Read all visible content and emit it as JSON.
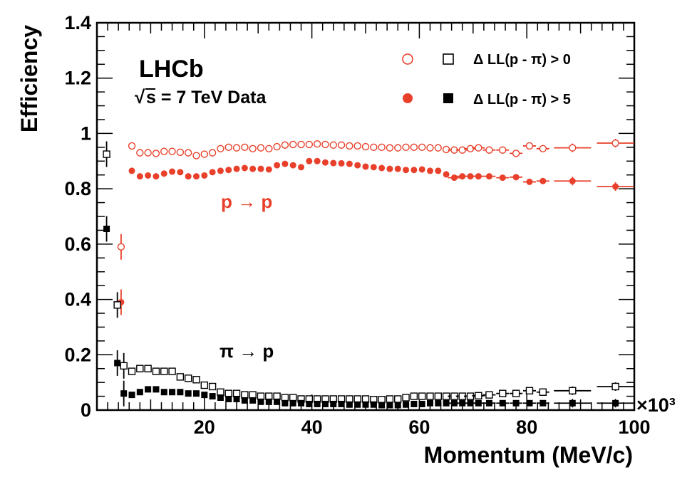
{
  "chart_data": {
    "type": "scatter",
    "xlabel": "Momentum (MeV/c)",
    "ylabel": "Efficiency",
    "x_multiplier": "×10³",
    "xlim": [
      0,
      100000
    ],
    "ylim": [
      0,
      1.4
    ],
    "x_ticks": [
      {
        "value": 20000,
        "label": "20"
      },
      {
        "value": 40000,
        "label": "40"
      },
      {
        "value": 60000,
        "label": "60"
      },
      {
        "value": 80000,
        "label": "80"
      },
      {
        "value": 100000,
        "label": "100"
      }
    ],
    "y_ticks": [
      {
        "value": 0,
        "label": "0"
      },
      {
        "value": 0.2,
        "label": "0.2"
      },
      {
        "value": 0.4,
        "label": "0.4"
      },
      {
        "value": 0.6,
        "label": "0.6"
      },
      {
        "value": 0.8,
        "label": "0.8"
      },
      {
        "value": 1.0,
        "label": "1"
      },
      {
        "value": 1.2,
        "label": "1.2"
      },
      {
        "value": 1.4,
        "label": "1.4"
      }
    ],
    "grid": false,
    "legend_position": "top-right",
    "legend": [
      {
        "label": "Δ LL(p - π) > 0",
        "markers": [
          "open-circle-red",
          "open-square-black"
        ]
      },
      {
        "label": "Δ LL(p - π) > 5",
        "markers": [
          "filled-circle-red",
          "filled-square-black"
        ]
      }
    ],
    "annotations": {
      "experiment": "LHCb",
      "energy_prefix": "√",
      "energy": "s = 7 TeV Data",
      "proton_label": "p → p",
      "pion_label": "π → p"
    },
    "colors": {
      "proton": "#e8402a",
      "pion": "#000000"
    },
    "series": [
      {
        "marker": "open-circle",
        "color": "#e8402a",
        "points": [
          [
            4500,
            0.59
          ],
          [
            6500,
            0.955
          ],
          [
            8000,
            0.93
          ],
          [
            9500,
            0.93
          ],
          [
            11000,
            0.928
          ],
          [
            12500,
            0.935
          ],
          [
            14000,
            0.935
          ],
          [
            15500,
            0.932
          ],
          [
            17000,
            0.93
          ],
          [
            18500,
            0.92
          ],
          [
            20000,
            0.925
          ],
          [
            21500,
            0.93
          ],
          [
            23000,
            0.945
          ],
          [
            24500,
            0.95
          ],
          [
            26000,
            0.948
          ],
          [
            27500,
            0.95
          ],
          [
            29000,
            0.945
          ],
          [
            30500,
            0.948
          ],
          [
            32000,
            0.945
          ],
          [
            33500,
            0.952
          ],
          [
            35000,
            0.958
          ],
          [
            36500,
            0.96
          ],
          [
            38000,
            0.96
          ],
          [
            39500,
            0.96
          ],
          [
            41000,
            0.962
          ],
          [
            42500,
            0.96
          ],
          [
            44000,
            0.958
          ],
          [
            45500,
            0.958
          ],
          [
            47000,
            0.955
          ],
          [
            48500,
            0.955
          ],
          [
            50000,
            0.952
          ],
          [
            51500,
            0.95
          ],
          [
            53000,
            0.95
          ],
          [
            54500,
            0.948
          ],
          [
            56000,
            0.948
          ],
          [
            57500,
            0.95
          ],
          [
            59000,
            0.95
          ],
          [
            60500,
            0.95
          ],
          [
            62000,
            0.948
          ],
          [
            63500,
            0.948
          ],
          [
            65000,
            0.942
          ],
          [
            66500,
            0.94
          ],
          [
            68000,
            0.94
          ],
          [
            69500,
            0.945
          ],
          [
            71000,
            0.948
          ],
          [
            73000,
            0.94
          ],
          [
            75500,
            0.94
          ],
          [
            78000,
            0.928
          ],
          [
            80500,
            0.955
          ],
          [
            83000,
            0.945
          ],
          [
            88500,
            0.948
          ],
          [
            96500,
            0.965
          ]
        ]
      },
      {
        "marker": "filled-circle",
        "color": "#e8402a",
        "points": [
          [
            4500,
            0.39
          ],
          [
            6500,
            0.865
          ],
          [
            8000,
            0.845
          ],
          [
            9500,
            0.848
          ],
          [
            11000,
            0.845
          ],
          [
            12500,
            0.855
          ],
          [
            14000,
            0.862
          ],
          [
            15500,
            0.86
          ],
          [
            17000,
            0.845
          ],
          [
            18500,
            0.845
          ],
          [
            20000,
            0.848
          ],
          [
            21500,
            0.86
          ],
          [
            23000,
            0.865
          ],
          [
            24500,
            0.868
          ],
          [
            26000,
            0.872
          ],
          [
            27500,
            0.875
          ],
          [
            29000,
            0.872
          ],
          [
            30500,
            0.872
          ],
          [
            32000,
            0.87
          ],
          [
            33500,
            0.885
          ],
          [
            35000,
            0.89
          ],
          [
            36500,
            0.885
          ],
          [
            38000,
            0.878
          ],
          [
            39500,
            0.9
          ],
          [
            41000,
            0.9
          ],
          [
            42500,
            0.895
          ],
          [
            44000,
            0.893
          ],
          [
            45500,
            0.892
          ],
          [
            47000,
            0.89
          ],
          [
            48500,
            0.885
          ],
          [
            50000,
            0.88
          ],
          [
            51500,
            0.878
          ],
          [
            53000,
            0.875
          ],
          [
            54500,
            0.872
          ],
          [
            56000,
            0.872
          ],
          [
            57500,
            0.868
          ],
          [
            59000,
            0.868
          ],
          [
            60500,
            0.87
          ],
          [
            62000,
            0.865
          ],
          [
            63500,
            0.865
          ],
          [
            65000,
            0.852
          ],
          [
            66500,
            0.84
          ],
          [
            68000,
            0.845
          ],
          [
            69500,
            0.845
          ],
          [
            71000,
            0.845
          ],
          [
            73000,
            0.845
          ],
          [
            75500,
            0.84
          ],
          [
            78000,
            0.842
          ],
          [
            80500,
            0.825
          ],
          [
            83000,
            0.828
          ],
          [
            88500,
            0.828
          ],
          [
            96500,
            0.808
          ]
        ]
      },
      {
        "marker": "open-square",
        "color": "#000000",
        "points": [
          [
            1800,
            0.925
          ],
          [
            3800,
            0.38
          ],
          [
            5000,
            0.16
          ],
          [
            6500,
            0.14
          ],
          [
            8000,
            0.15
          ],
          [
            9500,
            0.15
          ],
          [
            11000,
            0.14
          ],
          [
            12500,
            0.14
          ],
          [
            14000,
            0.14
          ],
          [
            15500,
            0.12
          ],
          [
            17000,
            0.115
          ],
          [
            18500,
            0.11
          ],
          [
            20000,
            0.09
          ],
          [
            21500,
            0.085
          ],
          [
            23000,
            0.065
          ],
          [
            24500,
            0.06
          ],
          [
            26000,
            0.06
          ],
          [
            27500,
            0.055
          ],
          [
            29000,
            0.055
          ],
          [
            30500,
            0.05
          ],
          [
            32000,
            0.05
          ],
          [
            33500,
            0.05
          ],
          [
            35000,
            0.045
          ],
          [
            36500,
            0.045
          ],
          [
            38000,
            0.04
          ],
          [
            39500,
            0.04
          ],
          [
            41000,
            0.04
          ],
          [
            42500,
            0.04
          ],
          [
            44000,
            0.04
          ],
          [
            45500,
            0.04
          ],
          [
            47000,
            0.04
          ],
          [
            48500,
            0.04
          ],
          [
            50000,
            0.04
          ],
          [
            51500,
            0.038
          ],
          [
            53000,
            0.038
          ],
          [
            54500,
            0.04
          ],
          [
            56000,
            0.04
          ],
          [
            57500,
            0.045
          ],
          [
            59000,
            0.05
          ],
          [
            60500,
            0.05
          ],
          [
            62000,
            0.05
          ],
          [
            63500,
            0.05
          ],
          [
            65000,
            0.05
          ],
          [
            66500,
            0.05
          ],
          [
            68000,
            0.05
          ],
          [
            69500,
            0.05
          ],
          [
            71000,
            0.052
          ],
          [
            73000,
            0.055
          ],
          [
            75500,
            0.06
          ],
          [
            78000,
            0.06
          ],
          [
            80500,
            0.07
          ],
          [
            83000,
            0.065
          ],
          [
            88500,
            0.07
          ],
          [
            96500,
            0.085
          ]
        ]
      },
      {
        "marker": "filled-square",
        "color": "#000000",
        "points": [
          [
            1800,
            0.655
          ],
          [
            3800,
            0.17
          ],
          [
            5000,
            0.06
          ],
          [
            6500,
            0.055
          ],
          [
            8000,
            0.065
          ],
          [
            9500,
            0.075
          ],
          [
            11000,
            0.075
          ],
          [
            12500,
            0.065
          ],
          [
            14000,
            0.065
          ],
          [
            15500,
            0.065
          ],
          [
            17000,
            0.06
          ],
          [
            18500,
            0.06
          ],
          [
            20000,
            0.055
          ],
          [
            21500,
            0.05
          ],
          [
            23000,
            0.045
          ],
          [
            24500,
            0.04
          ],
          [
            26000,
            0.04
          ],
          [
            27500,
            0.035
          ],
          [
            29000,
            0.035
          ],
          [
            30500,
            0.03
          ],
          [
            32000,
            0.03
          ],
          [
            33500,
            0.03
          ],
          [
            35000,
            0.025
          ],
          [
            36500,
            0.025
          ],
          [
            38000,
            0.025
          ],
          [
            39500,
            0.022
          ],
          [
            41000,
            0.022
          ],
          [
            42500,
            0.022
          ],
          [
            44000,
            0.022
          ],
          [
            45500,
            0.022
          ],
          [
            47000,
            0.02
          ],
          [
            48500,
            0.02
          ],
          [
            50000,
            0.02
          ],
          [
            51500,
            0.02
          ],
          [
            53000,
            0.018
          ],
          [
            54500,
            0.018
          ],
          [
            56000,
            0.018
          ],
          [
            57500,
            0.02
          ],
          [
            59000,
            0.022
          ],
          [
            60500,
            0.022
          ],
          [
            62000,
            0.025
          ],
          [
            63500,
            0.025
          ],
          [
            65000,
            0.025
          ],
          [
            66500,
            0.025
          ],
          [
            68000,
            0.025
          ],
          [
            69500,
            0.025
          ],
          [
            71000,
            0.025
          ],
          [
            73000,
            0.025
          ],
          [
            75500,
            0.025
          ],
          [
            78000,
            0.025
          ],
          [
            80500,
            0.025
          ],
          [
            83000,
            0.025
          ],
          [
            88500,
            0.025
          ],
          [
            96500,
            0.025
          ]
        ]
      }
    ]
  }
}
